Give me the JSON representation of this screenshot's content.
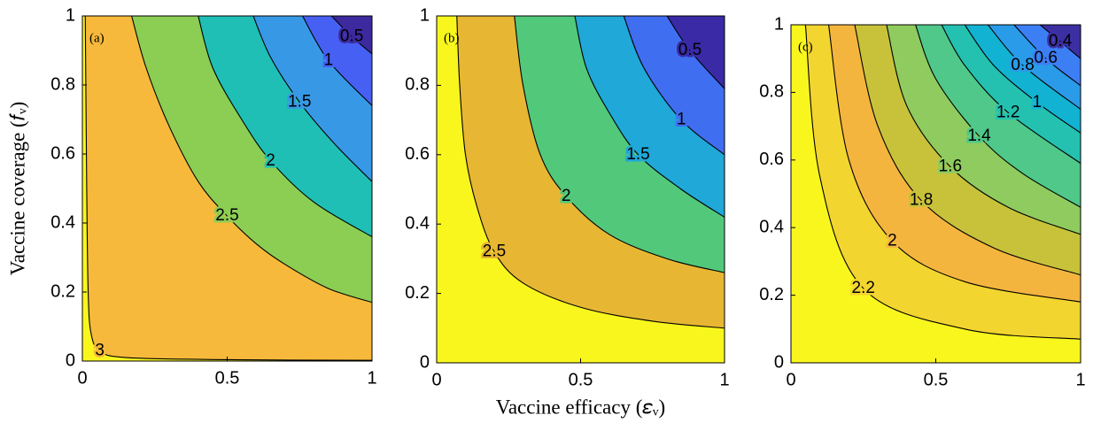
{
  "chart_data": [
    {
      "type": "contour",
      "panel_label": "(a)",
      "ylabel": "Vaccine coverage (𝑓ᵥ)",
      "xlim": [
        0,
        1
      ],
      "ylim": [
        0,
        1
      ],
      "xticks": [
        0,
        0.5,
        1
      ],
      "yticks": [
        0,
        0.2,
        0.4,
        0.6,
        0.8,
        1
      ],
      "base_color": "#f9f61e",
      "lines": [
        {
          "level": 3,
          "color": "#f7b93b",
          "x": [
            0.01,
            0.015,
            0.02,
            0.03,
            0.06,
            0.15,
            0.5,
            1
          ],
          "y": [
            1,
            0.5,
            0.2,
            0.08,
            0.03,
            0.01,
            0.004,
            0.002
          ]
        },
        {
          "level": 2.5,
          "color": "#8ccd53",
          "x": [
            0.17,
            0.22,
            0.3,
            0.4,
            0.5,
            0.6,
            0.7,
            0.85,
            1
          ],
          "y": [
            1,
            0.85,
            0.68,
            0.52,
            0.42,
            0.34,
            0.28,
            0.21,
            0.17
          ]
        },
        {
          "level": 2,
          "color": "#1fbfb6",
          "x": [
            0.4,
            0.45,
            0.55,
            0.65,
            0.8,
            1
          ],
          "y": [
            1,
            0.85,
            0.7,
            0.58,
            0.46,
            0.36
          ]
        },
        {
          "level": 1.5,
          "color": "#3799e6",
          "x": [
            0.59,
            0.65,
            0.75,
            0.87,
            1
          ],
          "y": [
            1,
            0.88,
            0.75,
            0.63,
            0.52
          ]
        },
        {
          "level": 1,
          "color": "#4660f3",
          "x": [
            0.76,
            0.85,
            1
          ],
          "y": [
            1,
            0.87,
            0.74
          ]
        },
        {
          "level": 0.5,
          "color": "#3c2a9e",
          "x": [
            0.86,
            0.93,
            1
          ],
          "y": [
            1,
            0.94,
            0.89
          ]
        }
      ]
    },
    {
      "type": "contour",
      "panel_label": "(b)",
      "xlabel": "Vaccine efficacy (𝜀ᵥ)",
      "xlim": [
        0,
        1
      ],
      "ylim": [
        0,
        1
      ],
      "xticks": [
        0,
        0.5,
        1
      ],
      "yticks": [
        0,
        0.2,
        0.4,
        0.6,
        0.8,
        1
      ],
      "base_color": "#f9f61e",
      "lines": [
        {
          "level": 2.5,
          "color": "#e7b633",
          "x": [
            0.07,
            0.08,
            0.1,
            0.14,
            0.2,
            0.3,
            0.5,
            0.75,
            1
          ],
          "y": [
            1,
            0.8,
            0.6,
            0.45,
            0.32,
            0.23,
            0.16,
            0.12,
            0.1
          ]
        },
        {
          "level": 2,
          "color": "#52c87b",
          "x": [
            0.27,
            0.3,
            0.36,
            0.45,
            0.6,
            0.8,
            1
          ],
          "y": [
            1,
            0.8,
            0.6,
            0.48,
            0.37,
            0.3,
            0.26
          ]
        },
        {
          "level": 1.5,
          "color": "#1fa8d8",
          "x": [
            0.48,
            0.52,
            0.6,
            0.7,
            0.85,
            1
          ],
          "y": [
            1,
            0.85,
            0.72,
            0.6,
            0.5,
            0.42
          ]
        },
        {
          "level": 1,
          "color": "#406ef1",
          "x": [
            0.65,
            0.72,
            0.85,
            1
          ],
          "y": [
            1,
            0.85,
            0.7,
            0.6
          ]
        },
        {
          "level": 0.5,
          "color": "#3a2aa6",
          "x": [
            0.8,
            0.88,
            1
          ],
          "y": [
            1,
            0.9,
            0.79
          ]
        }
      ]
    },
    {
      "type": "contour",
      "panel_label": "(c)",
      "xlim": [
        0,
        1
      ],
      "ylim": [
        0,
        1
      ],
      "xticks": [
        0,
        0.5,
        1
      ],
      "yticks": [
        0,
        0.2,
        0.4,
        0.6,
        0.8,
        1
      ],
      "base_color": "#f9f61e",
      "lines": [
        {
          "level": 2.2,
          "color": "#f3d52f",
          "x": [
            0.05,
            0.1,
            0.25,
            0.6,
            1
          ],
          "y": [
            1,
            0.55,
            0.22,
            0.1,
            0.07
          ]
        },
        {
          "level": 2,
          "color": "#f4b53f",
          "x": [
            0.13,
            0.2,
            0.35,
            0.6,
            1
          ],
          "y": [
            1,
            0.6,
            0.36,
            0.24,
            0.18
          ]
        },
        {
          "level": 1.8,
          "color": "#c7c23a",
          "x": [
            0.22,
            0.3,
            0.45,
            0.7,
            1
          ],
          "y": [
            1,
            0.7,
            0.48,
            0.34,
            0.26
          ]
        },
        {
          "level": 1.6,
          "color": "#8fcb5e",
          "x": [
            0.33,
            0.4,
            0.55,
            0.75,
            1
          ],
          "y": [
            1,
            0.76,
            0.58,
            0.46,
            0.38
          ]
        },
        {
          "level": 1.4,
          "color": "#4fc88a",
          "x": [
            0.43,
            0.5,
            0.65,
            0.8,
            1
          ],
          "y": [
            1,
            0.84,
            0.67,
            0.56,
            0.46
          ]
        },
        {
          "level": 1.2,
          "color": "#25c1b0",
          "x": [
            0.52,
            0.6,
            0.75,
            1
          ],
          "y": [
            1,
            0.88,
            0.74,
            0.59
          ]
        },
        {
          "level": 1,
          "color": "#12b3d2",
          "x": [
            0.6,
            0.7,
            0.85,
            1
          ],
          "y": [
            1,
            0.88,
            0.77,
            0.68
          ]
        },
        {
          "level": 0.8,
          "color": "#2a9be8",
          "x": [
            0.68,
            0.8,
            1
          ],
          "y": [
            1,
            0.88,
            0.75
          ]
        },
        {
          "level": 0.6,
          "color": "#3c7ef4",
          "x": [
            0.77,
            0.88,
            1
          ],
          "y": [
            1,
            0.9,
            0.82
          ]
        },
        {
          "level": 0.4,
          "color": "#3c2fa2",
          "x": [
            0.86,
            0.93,
            1
          ],
          "y": [
            1,
            0.95,
            0.9
          ]
        }
      ]
    }
  ]
}
